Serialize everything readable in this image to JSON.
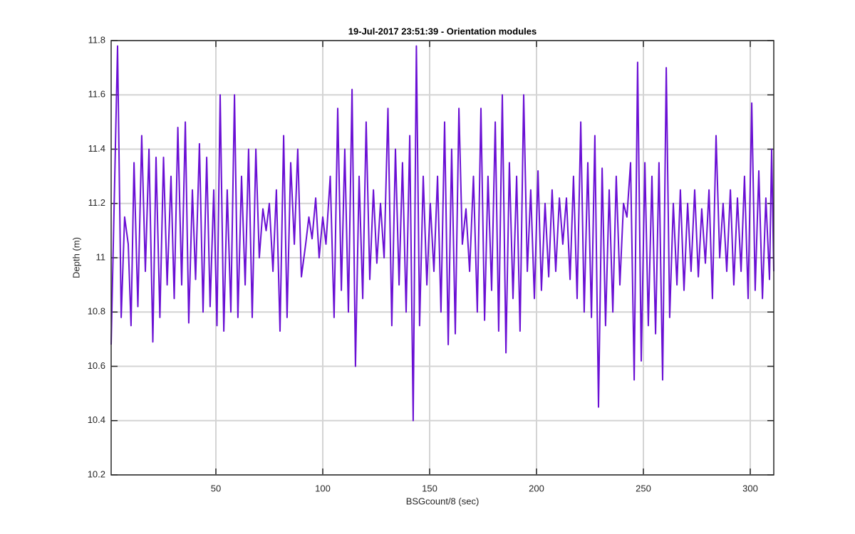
{
  "chart_data": {
    "type": "line",
    "title": "19-Jul-2017 23:51:39 - Orientation modules",
    "x_label": "BSGcount/8 (sec)",
    "y_label": "Depth (m)",
    "xlim": [
      1,
      311
    ],
    "ylim": [
      10.2,
      11.8
    ],
    "xticks": [
      50,
      100,
      150,
      200,
      250,
      300
    ],
    "yticks": [
      10.2,
      10.4,
      10.6,
      10.8,
      11,
      11.2,
      11.4,
      11.6,
      11.8
    ],
    "grid": true,
    "x": [
      1,
      4,
      5.7,
      7.3,
      9,
      10.3,
      11.7,
      13.5,
      15.3,
      17,
      18.7,
      20.5,
      22,
      23.8,
      25.5,
      27.2,
      29,
      30.5,
      32.2,
      34,
      35.7,
      37.3,
      39,
      40.5,
      42.3,
      44,
      45.7,
      47.3,
      49,
      50.5,
      52,
      53.7,
      55.3,
      57,
      58.7,
      60.3,
      62,
      63.7,
      65.3,
      67,
      68.7,
      70.3,
      72,
      73.5,
      75,
      76.7,
      78.3,
      80,
      81.7,
      83.3,
      85,
      86.7,
      88.3,
      90,
      92,
      93.5,
      95,
      96.7,
      98.3,
      100,
      101.5,
      103.5,
      105.3,
      107,
      108.7,
      110.3,
      112,
      113.7,
      115.3,
      117,
      118.7,
      120.3,
      122,
      123.7,
      125.3,
      127,
      128.7,
      130.5,
      132.3,
      134,
      135.7,
      137.3,
      139,
      140.7,
      142.3,
      143.8,
      145.3,
      147,
      148.7,
      150.3,
      152,
      153.7,
      155.3,
      157,
      158.7,
      160.3,
      162,
      163.7,
      165.3,
      167,
      168.7,
      170.5,
      172.3,
      174,
      175.7,
      177.3,
      179,
      180.7,
      182.3,
      184,
      185.7,
      187.3,
      189,
      190.7,
      192.3,
      194,
      195.7,
      197.3,
      199,
      200.7,
      202.3,
      204,
      205.7,
      207.3,
      209,
      210.7,
      212.3,
      214,
      215.7,
      217.3,
      219,
      220.7,
      222.3,
      224,
      225.7,
      227.3,
      229,
      230.7,
      232.3,
      234,
      235.7,
      237.3,
      239,
      240.7,
      242.3,
      244,
      245.7,
      247.3,
      249,
      250.7,
      252.3,
      254,
      255.7,
      257.3,
      259,
      260.7,
      262.3,
      264,
      265.7,
      267.3,
      269,
      270.7,
      272.3,
      274,
      275.7,
      277.3,
      279,
      280.7,
      282.3,
      284,
      285.7,
      287.3,
      289,
      290.7,
      292.3,
      294,
      295.7,
      297.3,
      299,
      300.7,
      302.3,
      304,
      305.7,
      307.3,
      309,
      310,
      311
    ],
    "series": [
      {
        "color": "#6a0fd4",
        "values": [
          10.68,
          11.78,
          10.78,
          11.15,
          11.05,
          10.75,
          11.35,
          10.82,
          11.45,
          10.95,
          11.4,
          10.69,
          11.37,
          10.78,
          11.37,
          10.9,
          11.3,
          10.85,
          11.48,
          10.9,
          11.5,
          10.76,
          11.25,
          10.92,
          11.42,
          10.8,
          11.37,
          10.82,
          11.25,
          10.75,
          11.6,
          10.73,
          11.25,
          10.8,
          11.6,
          10.78,
          11.3,
          10.9,
          11.4,
          10.78,
          11.4,
          11.0,
          11.18,
          11.1,
          11.2,
          10.95,
          11.25,
          10.73,
          11.45,
          10.78,
          11.35,
          11.05,
          11.4,
          10.93,
          11.05,
          11.15,
          11.07,
          11.22,
          11.0,
          11.15,
          11.05,
          11.3,
          10.78,
          11.55,
          10.88,
          11.4,
          10.8,
          11.62,
          10.6,
          11.3,
          10.85,
          11.5,
          10.92,
          11.25,
          10.98,
          11.2,
          11.0,
          11.55,
          10.75,
          11.4,
          10.9,
          11.35,
          10.8,
          11.45,
          10.4,
          11.78,
          10.75,
          11.3,
          10.9,
          11.2,
          10.95,
          11.3,
          10.8,
          11.5,
          10.68,
          11.4,
          10.72,
          11.55,
          11.05,
          11.18,
          10.95,
          11.3,
          10.8,
          11.55,
          10.77,
          11.3,
          10.88,
          11.5,
          10.73,
          11.6,
          10.65,
          11.35,
          10.85,
          11.3,
          10.73,
          11.6,
          10.95,
          11.25,
          10.85,
          11.32,
          10.88,
          11.2,
          10.93,
          11.25,
          10.95,
          11.22,
          11.05,
          11.22,
          10.92,
          11.3,
          10.85,
          11.5,
          10.8,
          11.35,
          10.78,
          11.45,
          10.45,
          11.33,
          10.75,
          11.25,
          10.8,
          11.3,
          10.9,
          11.2,
          11.15,
          11.35,
          10.55,
          11.72,
          10.62,
          11.35,
          10.75,
          11.3,
          10.72,
          11.35,
          10.55,
          11.7,
          10.78,
          11.2,
          10.9,
          11.25,
          10.88,
          11.2,
          10.95,
          11.25,
          10.93,
          11.18,
          10.98,
          11.25,
          10.85,
          11.45,
          11.0,
          11.2,
          10.95,
          11.25,
          10.9,
          11.22,
          10.95,
          11.3,
          10.85,
          11.57,
          10.88,
          11.32,
          10.85,
          11.22,
          10.92,
          11.4,
          10.95
        ]
      }
    ]
  }
}
